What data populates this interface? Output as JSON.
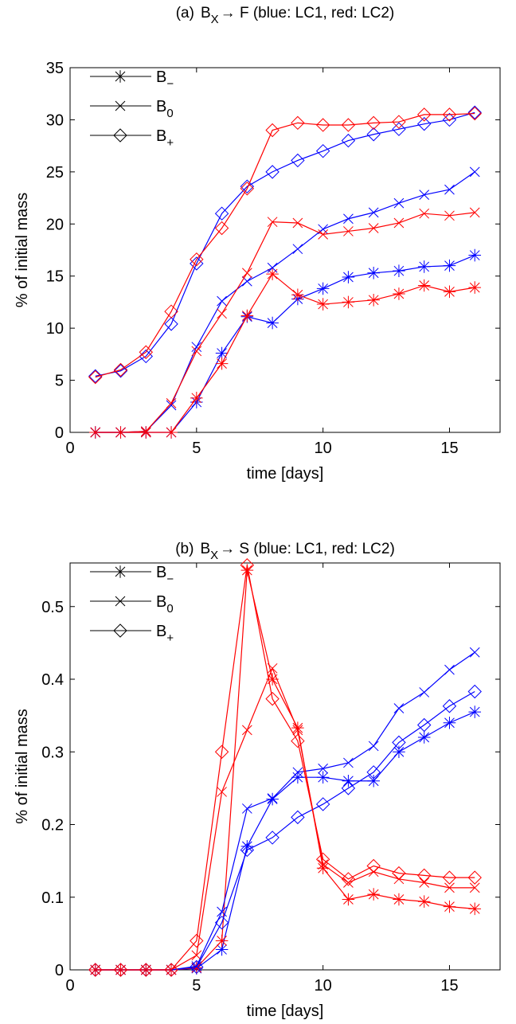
{
  "chart_data": [
    {
      "type": "line",
      "title": {
        "prefix": "(a)",
        "base": "B",
        "sub": "X",
        "rest": "→ F  (blue: LC1, red: LC2)"
      },
      "x_label": "time [days]",
      "y_label": "% of initial mass",
      "xlim": [
        0,
        17
      ],
      "ylim": [
        0,
        35
      ],
      "xticks": [
        0,
        5,
        10,
        15
      ],
      "yticks": [
        0,
        5,
        10,
        15,
        20,
        25,
        30,
        35
      ],
      "x": [
        1,
        2,
        3,
        4,
        5,
        6,
        7,
        8,
        9,
        10,
        11,
        12,
        13,
        14,
        15,
        16
      ],
      "legend": [
        {
          "base": "B",
          "sub": "−",
          "marker": "star"
        },
        {
          "base": "B",
          "sub": "0",
          "marker": "x"
        },
        {
          "base": "B",
          "sub": "+",
          "marker": "diamond"
        }
      ],
      "legend_corner": "upper left",
      "series": [
        {
          "marker": "star",
          "color": "#0000ff",
          "values": [
            0,
            0,
            0,
            0,
            2.9,
            7.6,
            11.1,
            10.5,
            12.8,
            13.8,
            14.9,
            15.3,
            15.5,
            15.9,
            16.0,
            17.0
          ]
        },
        {
          "marker": "star",
          "color": "#ff0000",
          "values": [
            0,
            0,
            0,
            0,
            3.3,
            6.6,
            11.2,
            15.2,
            13.2,
            12.3,
            12.5,
            12.7,
            13.3,
            14.1,
            13.5,
            13.9
          ]
        },
        {
          "marker": "x",
          "color": "#0000ff",
          "values": [
            0,
            0,
            0.1,
            2.6,
            8.2,
            12.6,
            14.5,
            15.8,
            17.6,
            19.5,
            20.5,
            21.1,
            22.0,
            22.8,
            23.3,
            25.0
          ]
        },
        {
          "marker": "x",
          "color": "#ff0000",
          "values": [
            0,
            0,
            0.1,
            2.8,
            7.8,
            11.4,
            15.3,
            20.2,
            20.1,
            19.0,
            19.3,
            19.6,
            20.1,
            21.0,
            20.8,
            21.1
          ]
        },
        {
          "marker": "diamond",
          "color": "#0000ff",
          "values": [
            5.4,
            5.9,
            7.3,
            10.4,
            16.2,
            21.0,
            23.6,
            25.0,
            26.1,
            27.0,
            28.0,
            28.6,
            29.1,
            29.6,
            30.0,
            30.7
          ]
        },
        {
          "marker": "diamond",
          "color": "#ff0000",
          "values": [
            5.3,
            6.0,
            7.7,
            11.6,
            16.6,
            19.6,
            23.4,
            29.0,
            29.7,
            29.5,
            29.5,
            29.7,
            29.8,
            30.5,
            30.5,
            30.6
          ]
        }
      ]
    },
    {
      "type": "line",
      "title": {
        "prefix": "(b)",
        "base": "B",
        "sub": "X",
        "rest": "→ S  (blue: LC1, red: LC2)"
      },
      "x_label": "time [days]",
      "y_label": "% of initial mass",
      "xlim": [
        0,
        17
      ],
      "ylim": [
        0,
        0.56
      ],
      "xticks": [
        0,
        5,
        10,
        15
      ],
      "yticks": [
        0,
        0.1,
        0.2,
        0.3,
        0.4,
        0.5
      ],
      "x": [
        1,
        2,
        3,
        4,
        5,
        6,
        7,
        8,
        9,
        10,
        11,
        12,
        13,
        14,
        15,
        16
      ],
      "legend": [
        {
          "base": "B",
          "sub": "−",
          "marker": "star"
        },
        {
          "base": "B",
          "sub": "0",
          "marker": "x"
        },
        {
          "base": "B",
          "sub": "+",
          "marker": "diamond"
        }
      ],
      "legend_corner": "upper left",
      "series": [
        {
          "marker": "star",
          "color": "#0000ff",
          "values": [
            0,
            0,
            0,
            0,
            0.002,
            0.028,
            0.17,
            0.235,
            0.265,
            0.265,
            0.26,
            0.26,
            0.3,
            0.32,
            0.34,
            0.355
          ]
        },
        {
          "marker": "star",
          "color": "#ff0000",
          "values": [
            0,
            0,
            0,
            0,
            0.003,
            0.04,
            0.55,
            0.4,
            0.333,
            0.14,
            0.097,
            0.104,
            0.097,
            0.094,
            0.087,
            0.084
          ]
        },
        {
          "marker": "x",
          "color": "#0000ff",
          "values": [
            0,
            0,
            0,
            0,
            0.005,
            0.08,
            0.222,
            0.236,
            0.272,
            0.277,
            0.285,
            0.308,
            0.36,
            0.382,
            0.413,
            0.437
          ]
        },
        {
          "marker": "x",
          "color": "#ff0000",
          "values": [
            0,
            0,
            0,
            0,
            0.02,
            0.245,
            0.33,
            0.415,
            0.33,
            0.145,
            0.12,
            0.135,
            0.125,
            0.12,
            0.113,
            0.113
          ]
        },
        {
          "marker": "diamond",
          "color": "#0000ff",
          "values": [
            0,
            0,
            0,
            0,
            0.004,
            0.065,
            0.165,
            0.182,
            0.21,
            0.228,
            0.25,
            0.272,
            0.313,
            0.337,
            0.363,
            0.383
          ]
        },
        {
          "marker": "diamond",
          "color": "#ff0000",
          "values": [
            0,
            0,
            0,
            0,
            0.04,
            0.3,
            0.557,
            0.373,
            0.315,
            0.152,
            0.125,
            0.143,
            0.133,
            0.13,
            0.127,
            0.127
          ]
        }
      ]
    }
  ]
}
